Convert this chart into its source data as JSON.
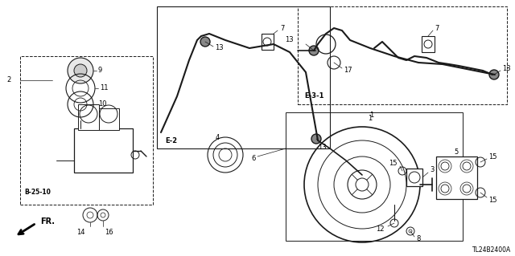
{
  "background_color": "#ffffff",
  "diagram_code": "TL24B2400A",
  "boxes": {
    "E2": [
      0.305,
      0.03,
      0.635,
      0.58
    ],
    "E31": [
      0.575,
      0.025,
      0.985,
      0.42
    ],
    "B2510": [
      0.04,
      0.22,
      0.3,
      0.8
    ],
    "part1": [
      0.555,
      0.43,
      0.895,
      0.985
    ]
  }
}
